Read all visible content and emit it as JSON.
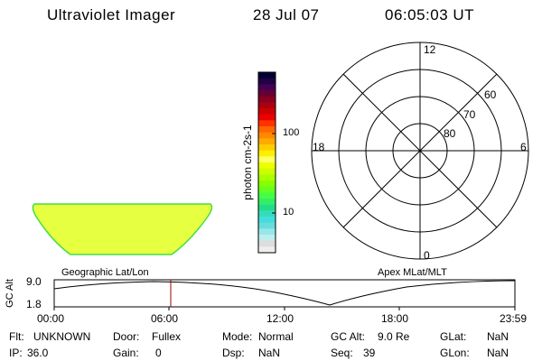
{
  "header": {
    "title": "Ultraviolet Imager",
    "date": "28 Jul 07",
    "time": "06:05:03 UT"
  },
  "colorbar": {
    "unit_label": "photon cm-2s-1",
    "scale": "log",
    "ticks": [
      "100",
      "10"
    ],
    "colors": [
      "#000033",
      "#220044",
      "#440055",
      "#660033",
      "#880022",
      "#aa0011",
      "#cc0000",
      "#ee0000",
      "#ff3300",
      "#ff6600",
      "#ff8800",
      "#ffaa00",
      "#ffcc00",
      "#ffee00",
      "#ffff66",
      "#eeff00",
      "#ccff00",
      "#aaff00",
      "#88ff00",
      "#66ff22",
      "#44ff44",
      "#33ee66",
      "#22dd88",
      "#33ddbb",
      "#44dddd",
      "#66dddd",
      "#99e6e6",
      "#bbeeee",
      "#dddddd",
      "#eeeeee"
    ]
  },
  "image_panel": {
    "label": "Geographic Lat/Lon",
    "fill_color": "#e6ff40",
    "edge_color": "#44dd44"
  },
  "polar_plot": {
    "label": "Apex MLat/MLT",
    "mlt_labels": {
      "top": "12",
      "bottom": "0",
      "left": "18",
      "right": "6"
    },
    "lat_labels": [
      "60",
      "70",
      "80"
    ]
  },
  "altitude_strip": {
    "ylabel": "GC Alt",
    "ymax": "9.0",
    "ymin": "1.8",
    "marker_color": "#990000",
    "marker_time": "06:05",
    "time_ticks": [
      "00:00",
      "06:00",
      "12:00",
      "18:00",
      "23:59"
    ]
  },
  "info": {
    "row1": [
      {
        "key": "Flt:",
        "value": "UNKNOWN"
      },
      {
        "key": "Door:",
        "value": "Fullex"
      },
      {
        "key": "Mode:",
        "value": "Normal"
      },
      {
        "key": "GC Alt:",
        "value": "9.0 Re"
      },
      {
        "key": "GLat:",
        "value": "NaN"
      }
    ],
    "row2": [
      {
        "key": "IP:",
        "value": "36.0"
      },
      {
        "key": "Gain:",
        "value": "0"
      },
      {
        "key": "Dsp:",
        "value": "NaN"
      },
      {
        "key": "Seq:",
        "value": "39"
      },
      {
        "key": "GLon:",
        "value": "NaN"
      }
    ]
  }
}
